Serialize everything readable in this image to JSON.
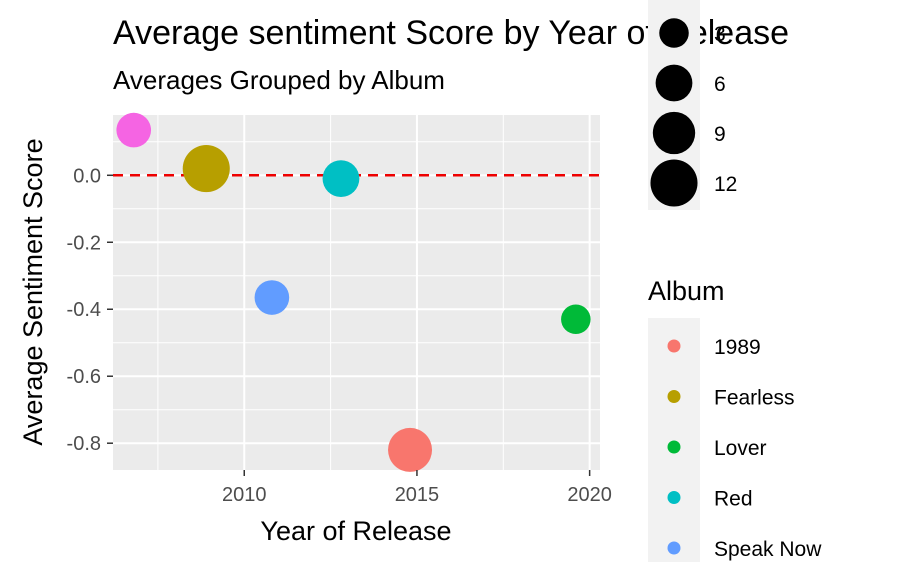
{
  "chart_data": {
    "type": "scatter",
    "title": "Average sentiment Score by Year of Release",
    "subtitle": "Averages Grouped by Album",
    "xlabel": "Year of Release",
    "ylabel": "Average Sentiment Score",
    "xlim": [
      2006.2,
      2020.3
    ],
    "ylim": [
      -0.88,
      0.18
    ],
    "x_ticks": [
      2010,
      2015,
      2020
    ],
    "y_ticks": [
      0.0,
      -0.2,
      -0.4,
      -0.6,
      -0.8
    ],
    "x_tick_labels": [
      "2010",
      "2015",
      "2020"
    ],
    "y_tick_labels": [
      "0.0",
      "-0.2",
      "-0.4",
      "-0.6",
      "-0.8"
    ],
    "reference_line": {
      "y": 0,
      "color": "#ee0000",
      "style": "dashed"
    },
    "grid": true,
    "points": [
      {
        "album": "",
        "x": 2006.8,
        "y": 0.135,
        "size": 5,
        "color": "#f564e3"
      },
      {
        "album": "Fearless",
        "x": 2008.9,
        "y": 0.02,
        "size": 12,
        "color": "#b79f00"
      },
      {
        "album": "Speak Now",
        "x": 2010.8,
        "y": -0.365,
        "size": 5,
        "color": "#619cff"
      },
      {
        "album": "Red",
        "x": 2012.8,
        "y": -0.01,
        "size": 6,
        "color": "#00bfc4"
      },
      {
        "album": "1989",
        "x": 2014.8,
        "y": -0.82,
        "size": 10,
        "color": "#f8766d"
      },
      {
        "album": "Lover",
        "x": 2019.6,
        "y": -0.43,
        "size": 3,
        "color": "#00ba38"
      }
    ],
    "size_legend": {
      "entries": [
        {
          "label": "3",
          "value": 3
        },
        {
          "label": "6",
          "value": 6
        },
        {
          "label": "9",
          "value": 9
        },
        {
          "label": "12",
          "value": 12
        }
      ]
    },
    "color_legend": {
      "title": "Album",
      "entries": [
        {
          "label": "1989",
          "color": "#f8766d"
        },
        {
          "label": "Fearless",
          "color": "#b79f00"
        },
        {
          "label": "Lover",
          "color": "#00ba38"
        },
        {
          "label": "Red",
          "color": "#00bfc4"
        },
        {
          "label": "Speak Now",
          "color": "#619cff"
        }
      ]
    },
    "colors": {
      "panel": "#ebebeb",
      "grid_major": "#ffffff",
      "tick_text": "#4d4d4d"
    }
  }
}
